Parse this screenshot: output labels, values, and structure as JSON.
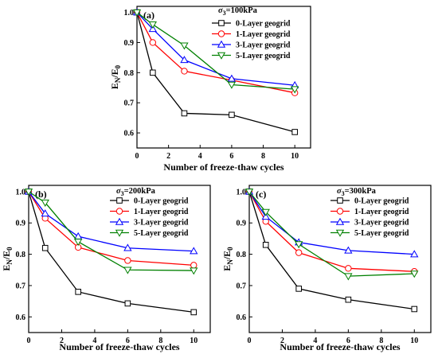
{
  "colors": {
    "series": [
      "#000000",
      "#ff0000",
      "#0000ff",
      "#008000"
    ]
  },
  "markers": [
    "square",
    "circle",
    "triangle-up",
    "triangle-down"
  ],
  "chart_data": [
    {
      "type": "line",
      "panel": "(a)",
      "legend_title_symbol": "σ",
      "legend_title_sub": "3",
      "legend_title_rest": "=100kPa",
      "legend_placement": "top-right",
      "xlabel": "Number of freeze-thaw cycles",
      "ylabel_main": "E",
      "ylabel_sub1": "N",
      "ylabel_mid": "/E",
      "ylabel_sub2": "0",
      "xlim": [
        0,
        11
      ],
      "ylim": [
        0.55,
        1.02
      ],
      "xticks": [
        "0",
        "2",
        "4",
        "6",
        "8",
        "10"
      ],
      "yticks": [
        "0.6",
        "0.7",
        "0.8",
        "0.9",
        "1.0"
      ],
      "x": [
        0,
        1,
        3,
        6,
        10
      ],
      "series": [
        {
          "name": "0-Layer geogrid",
          "values": [
            1.0,
            0.8,
            0.665,
            0.66,
            0.603
          ]
        },
        {
          "name": "1-Layer geogrid",
          "values": [
            1.0,
            0.9,
            0.805,
            0.775,
            0.733
          ]
        },
        {
          "name": "3-Layer geogrid",
          "values": [
            1.0,
            0.945,
            0.842,
            0.78,
            0.758
          ]
        },
        {
          "name": "5-Layer geogrid",
          "values": [
            1.0,
            0.96,
            0.89,
            0.76,
            0.745
          ]
        }
      ]
    },
    {
      "type": "line",
      "panel": "(b)",
      "legend_title_symbol": "σ",
      "legend_title_sub": "3",
      "legend_title_rest": "=200kPa",
      "legend_placement": "top-right",
      "xlabel": "Number of freeze-thaw cycles",
      "ylabel_main": "E",
      "ylabel_sub1": "N",
      "ylabel_mid": "/E",
      "ylabel_sub2": "0",
      "xlim": [
        0,
        11
      ],
      "ylim": [
        0.55,
        1.02
      ],
      "xticks": [
        "0",
        "2",
        "4",
        "6",
        "8",
        "10"
      ],
      "yticks": [
        "0.6",
        "0.7",
        "0.8",
        "0.9",
        "1.0"
      ],
      "x": [
        0,
        1,
        3,
        6,
        10
      ],
      "series": [
        {
          "name": "0-Layer geogrid",
          "values": [
            1.0,
            0.82,
            0.68,
            0.643,
            0.615
          ]
        },
        {
          "name": "1-Layer geogrid",
          "values": [
            1.0,
            0.915,
            0.822,
            0.78,
            0.765
          ]
        },
        {
          "name": "3-Layer geogrid",
          "values": [
            1.0,
            0.93,
            0.857,
            0.82,
            0.81
          ]
        },
        {
          "name": "5-Layer geogrid",
          "values": [
            1.0,
            0.965,
            0.84,
            0.75,
            0.748
          ]
        }
      ]
    },
    {
      "type": "line",
      "panel": "(c)",
      "legend_title_symbol": "σ",
      "legend_title_sub": "3",
      "legend_title_rest": "=300kPa",
      "legend_placement": "top-right",
      "xlabel": "Number of freeze-thaw cycles",
      "ylabel_main": "E",
      "ylabel_sub1": "N",
      "ylabel_mid": "/E",
      "ylabel_sub2": "0",
      "xlim": [
        0,
        11
      ],
      "ylim": [
        0.55,
        1.02
      ],
      "xticks": [
        "0",
        "2",
        "4",
        "6",
        "8",
        "10"
      ],
      "yticks": [
        "0.6",
        "0.7",
        "0.8",
        "0.9",
        "1.0"
      ],
      "x": [
        0,
        1,
        3,
        6,
        10
      ],
      "series": [
        {
          "name": "0-Layer geogrid",
          "values": [
            1.0,
            0.83,
            0.69,
            0.655,
            0.625
          ]
        },
        {
          "name": "1-Layer geogrid",
          "values": [
            1.0,
            0.905,
            0.805,
            0.755,
            0.745
          ]
        },
        {
          "name": "3-Layer geogrid",
          "values": [
            1.0,
            0.92,
            0.838,
            0.812,
            0.8
          ]
        },
        {
          "name": "5-Layer geogrid",
          "values": [
            1.0,
            0.935,
            0.832,
            0.73,
            0.738
          ]
        }
      ]
    }
  ]
}
